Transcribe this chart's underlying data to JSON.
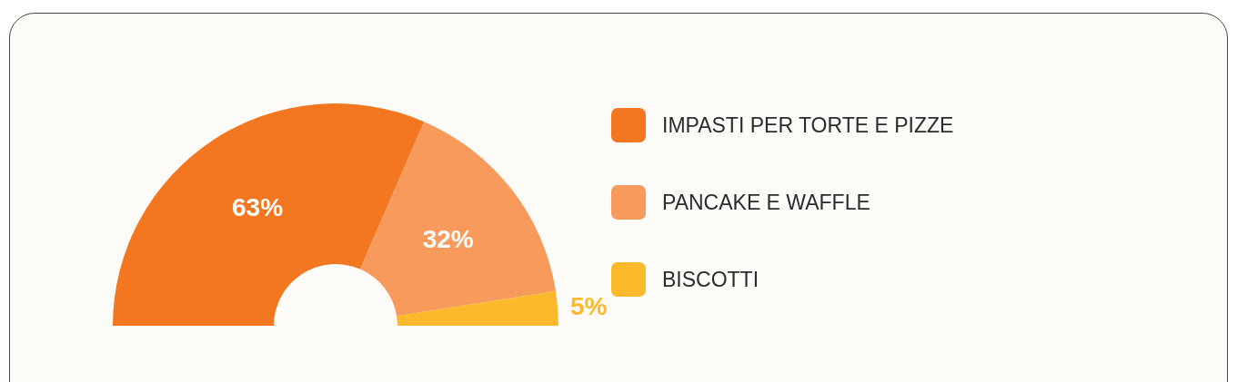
{
  "chart_data": {
    "type": "donut",
    "categories": [
      "IMPASTI PER TORTE E PIZZE",
      "PANCAKE E WAFFLE",
      "BISCOTTI"
    ],
    "values": [
      63,
      32,
      5
    ],
    "colors": [
      "#f37721",
      "#f79a5c",
      "#fbb92b"
    ],
    "value_labels": [
      "63%",
      "32%",
      "5%"
    ],
    "legend": "right"
  }
}
